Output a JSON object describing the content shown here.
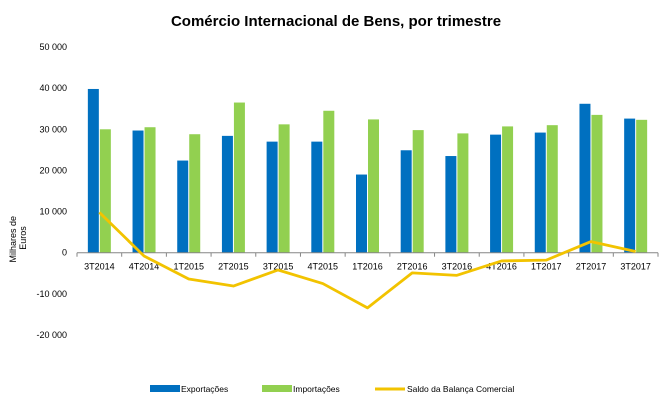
{
  "chart_data": {
    "type": "bar",
    "title": "Comércio Internacional de Bens, por trimestre",
    "ylabel_lines": [
      "Milhares de",
      "Euros"
    ],
    "ylim": [
      -20000,
      50000
    ],
    "yticks": [
      -20000,
      -10000,
      0,
      10000,
      20000,
      30000,
      40000,
      50000
    ],
    "ytick_labels": [
      "-20 000",
      "-10 000",
      "0",
      "10 000",
      "20 000",
      "30 000",
      "40 000",
      "50 000"
    ],
    "categories": [
      "3T2014",
      "4T2014",
      "1T2015",
      "2T2015",
      "3T2015",
      "4T2015",
      "1T2016",
      "2T2016",
      "3T2016",
      "4T2016",
      "1T2017",
      "2T2017",
      "3T2017"
    ],
    "series": [
      {
        "name": "Exportações",
        "kind": "bar",
        "color": "#0070C0",
        "values": [
          39800,
          29700,
          22400,
          28400,
          27000,
          27000,
          19000,
          24900,
          23500,
          28700,
          29200,
          36200,
          32600
        ]
      },
      {
        "name": "Importações",
        "kind": "bar",
        "color": "#92D050",
        "values": [
          30000,
          30500,
          28800,
          36500,
          31200,
          34500,
          32400,
          29800,
          29000,
          30700,
          31000,
          33500,
          32300
        ]
      },
      {
        "name": "Saldo da Balança Comercial",
        "kind": "line",
        "color": "#F2C300",
        "values": [
          9800,
          -800,
          -6400,
          -8100,
          -4200,
          -7500,
          -13400,
          -4900,
          -5500,
          -2000,
          -1800,
          2700,
          300
        ]
      }
    ],
    "legend_position": "bottom",
    "grid": false
  }
}
